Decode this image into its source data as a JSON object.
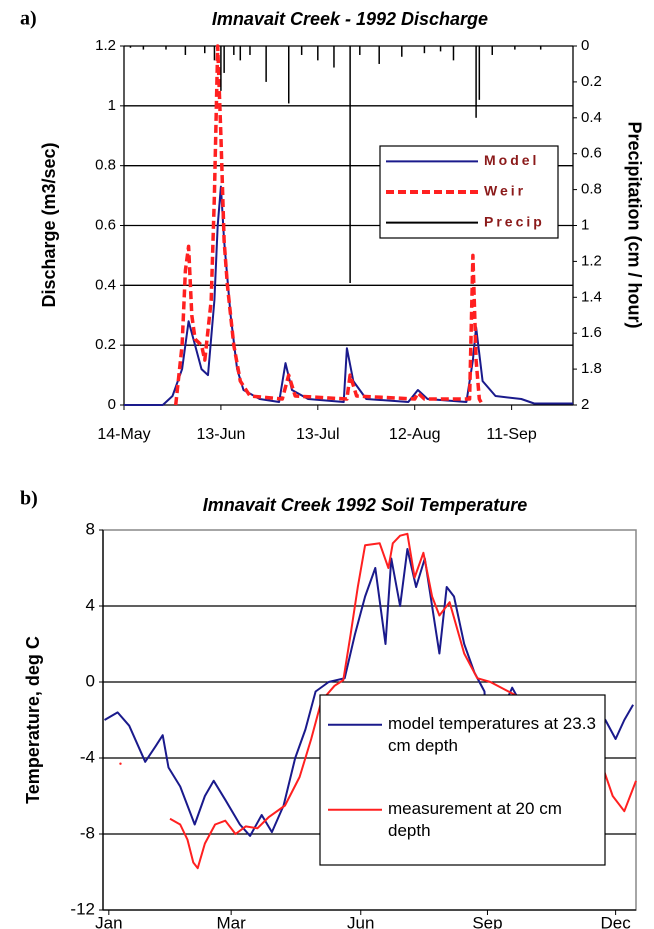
{
  "chart_data": [
    {
      "type": "line",
      "panel": "a)",
      "title": "Imnavait Creek - 1992 Discharge",
      "y_label": "Discharge (m3/sec)",
      "y2_label": "Precipitation (cm / hour)",
      "xlim": [
        "14-May",
        "30-Sep"
      ],
      "xticks": [
        "14-May",
        "13-Jun",
        "13-Jul",
        "12-Aug",
        "11-Sep"
      ],
      "ylim": [
        0,
        1.2
      ],
      "yticks": [
        0,
        0.2,
        0.4,
        0.6,
        0.8,
        1,
        1.2
      ],
      "y2lim": [
        0,
        2
      ],
      "y2ticks": [
        0,
        0.2,
        0.4,
        0.6,
        0.8,
        1,
        1.2,
        1.4,
        1.6,
        1.8,
        2
      ],
      "y2_inverted": true,
      "grid": true,
      "series": [
        {
          "name": "Model",
          "color": "#1a1a8c",
          "type": "line",
          "x": [
            "14-May",
            "26-May",
            "29-May",
            "1-Jun",
            "3-Jun",
            "5-Jun",
            "7-Jun",
            "9-Jun",
            "11-Jun",
            "12-Jun",
            "13-Jun",
            "14-Jun",
            "16-Jun",
            "18-Jun",
            "20-Jun",
            "25-Jun",
            "1-Jul",
            "3-Jul",
            "5-Jul",
            "10-Jul",
            "21-Jul",
            "22-Jul",
            "24-Jul",
            "28-Jul",
            "10-Aug",
            "13-Aug",
            "16-Aug",
            "28-Aug",
            "30-Aug",
            "31-Aug",
            "2-Sep",
            "6-Sep",
            "14-Sep",
            "18-Sep",
            "30-Sep"
          ],
          "values": [
            0,
            0,
            0.03,
            0.12,
            0.28,
            0.2,
            0.12,
            0.1,
            0.35,
            0.6,
            0.73,
            0.55,
            0.3,
            0.12,
            0.05,
            0.02,
            0.01,
            0.14,
            0.05,
            0.02,
            0.01,
            0.19,
            0.08,
            0.02,
            0.01,
            0.05,
            0.02,
            0.01,
            0.15,
            0.26,
            0.08,
            0.03,
            0.02,
            0.005,
            0.005
          ]
        },
        {
          "name": "Weir",
          "color": "#ff2020",
          "type": "line",
          "dashed": true,
          "x": [
            "30-May",
            "1-Jun",
            "2-Jun",
            "3-Jun",
            "4-Jun",
            "5-Jun",
            "7-Jun",
            "8-Jun",
            "9-Jun",
            "10-Jun",
            "11-Jun",
            "12-Jun",
            "13-Jun",
            "14-Jun",
            "15-Jun",
            "17-Jun",
            "19-Jun",
            "22-Jun",
            "2-Jul",
            "4-Jul",
            "6-Jul",
            "22-Jul",
            "23-Jul",
            "25-Jul",
            "12-Aug",
            "13-Aug",
            "15-Aug",
            "29-Aug",
            "30-Aug",
            "31-Aug",
            "1-Sep",
            "2-Sep"
          ],
          "values": [
            0,
            0.2,
            0.45,
            0.53,
            0.3,
            0.22,
            0.2,
            0.15,
            0.25,
            0.35,
            0.7,
            1.2,
            0.9,
            0.55,
            0.4,
            0.2,
            0.08,
            0.03,
            0.02,
            0.1,
            0.03,
            0.02,
            0.1,
            0.03,
            0.02,
            0.04,
            0.02,
            0.02,
            0.5,
            0.15,
            0.02,
            0
          ]
        },
        {
          "name": "Precip",
          "color": "#000000",
          "type": "bar",
          "axis": "y2",
          "x": [
            "16-May",
            "20-May",
            "27-May",
            "2-Jun",
            "8-Jun",
            "11-Jun",
            "13-Jun",
            "14-Jun",
            "17-Jun",
            "19-Jun",
            "22-Jun",
            "27-Jun",
            "4-Jul",
            "8-Jul",
            "13-Jul",
            "18-Jul",
            "23-Jul",
            "26-Jul",
            "1-Aug",
            "8-Aug",
            "15-Aug",
            "20-Aug",
            "24-Aug",
            "31-Aug",
            "1-Sep",
            "5-Sep",
            "12-Sep",
            "20-Sep"
          ],
          "values": [
            0.01,
            0.02,
            0.02,
            0.05,
            0.04,
            0.08,
            0.25,
            0.15,
            0.05,
            0.08,
            0.05,
            0.2,
            0.32,
            0.05,
            0.08,
            0.12,
            1.32,
            0.05,
            0.1,
            0.06,
            0.04,
            0.03,
            0.08,
            0.4,
            0.3,
            0.05,
            0.02,
            0.02
          ]
        }
      ]
    },
    {
      "type": "line",
      "panel": "b)",
      "title": "Imnavait Creek  1992 Soil Temperature",
      "y_label": "Temperature, deg C",
      "xlim": [
        0,
        366
      ],
      "xticks": [
        {
          "value": 4,
          "label": "Jan"
        },
        {
          "value": 88,
          "label": "Mar"
        },
        {
          "value": 177,
          "label": "Jun"
        },
        {
          "value": 264,
          "label": "Sep"
        },
        {
          "value": 352,
          "label": "Dec"
        }
      ],
      "ylim": [
        -12,
        8
      ],
      "yticks": [
        -12,
        -8,
        -4,
        0,
        4,
        8
      ],
      "grid": true,
      "series": [
        {
          "name": "model temperatures at 23.3 cm depth",
          "color": "#1a1a8c",
          "type": "line",
          "x": [
            1,
            10,
            18,
            29,
            36,
            41,
            45,
            53,
            63,
            70,
            76,
            84,
            94,
            101,
            109,
            116,
            124,
            132,
            139,
            146,
            155,
            166,
            173,
            180,
            187,
            194,
            198,
            204,
            209,
            215,
            221,
            228,
            231,
            236,
            241,
            248,
            255,
            262,
            264,
            267,
            274,
            281,
            286,
            293,
            300,
            307,
            315,
            322,
            331,
            338,
            345,
            352,
            358,
            364
          ],
          "values": [
            -2,
            -1.6,
            -2.3,
            -4.2,
            -3.4,
            -2.8,
            -4.5,
            -5.5,
            -7.5,
            -6,
            -5.2,
            -6.2,
            -7.5,
            -8.1,
            -7,
            -7.9,
            -6.5,
            -4,
            -2.5,
            -0.5,
            0,
            0.2,
            2.5,
            4.5,
            6,
            2,
            6.5,
            4,
            7,
            5,
            6.5,
            3,
            1.5,
            5,
            4.5,
            2,
            0.5,
            -0.5,
            -4.3,
            -2,
            -1.5,
            -0.3,
            -1,
            -1.5,
            -2,
            -1.5,
            -1.7,
            -0.8,
            -2.5,
            -1.5,
            -2,
            -3,
            -2,
            -1.2
          ]
        },
        {
          "name": "measurement at 20 cm depth",
          "color": "#ff2020",
          "type": "line",
          "x": [
            12,
            30,
            46,
            53,
            58,
            62,
            65,
            70,
            77,
            84,
            91,
            98,
            106,
            114,
            125,
            135,
            143,
            150,
            159,
            165,
            170,
            175,
            180,
            190,
            196,
            199,
            204,
            209,
            214,
            220,
            226,
            231,
            238,
            248,
            257,
            266,
            276,
            286,
            297,
            307,
            321,
            331,
            341,
            350,
            358,
            366
          ],
          "values": [
            -4.3,
            null,
            -7.2,
            -7.5,
            -8.3,
            -9.5,
            -9.8,
            -8.5,
            -7.5,
            -7.3,
            -8,
            -7.6,
            -7.7,
            -7.1,
            -6.5,
            -5,
            -3,
            -1,
            -0.2,
            0.1,
            2.5,
            5,
            7.2,
            7.3,
            6,
            7.3,
            7.7,
            7.8,
            5.5,
            6.8,
            4.5,
            3.5,
            4.2,
            1.5,
            0.2,
            0,
            -0.4,
            -0.8,
            -1.5,
            -1.8,
            -2.2,
            -3,
            -4,
            -6,
            -6.8,
            -5.2
          ]
        }
      ]
    }
  ]
}
